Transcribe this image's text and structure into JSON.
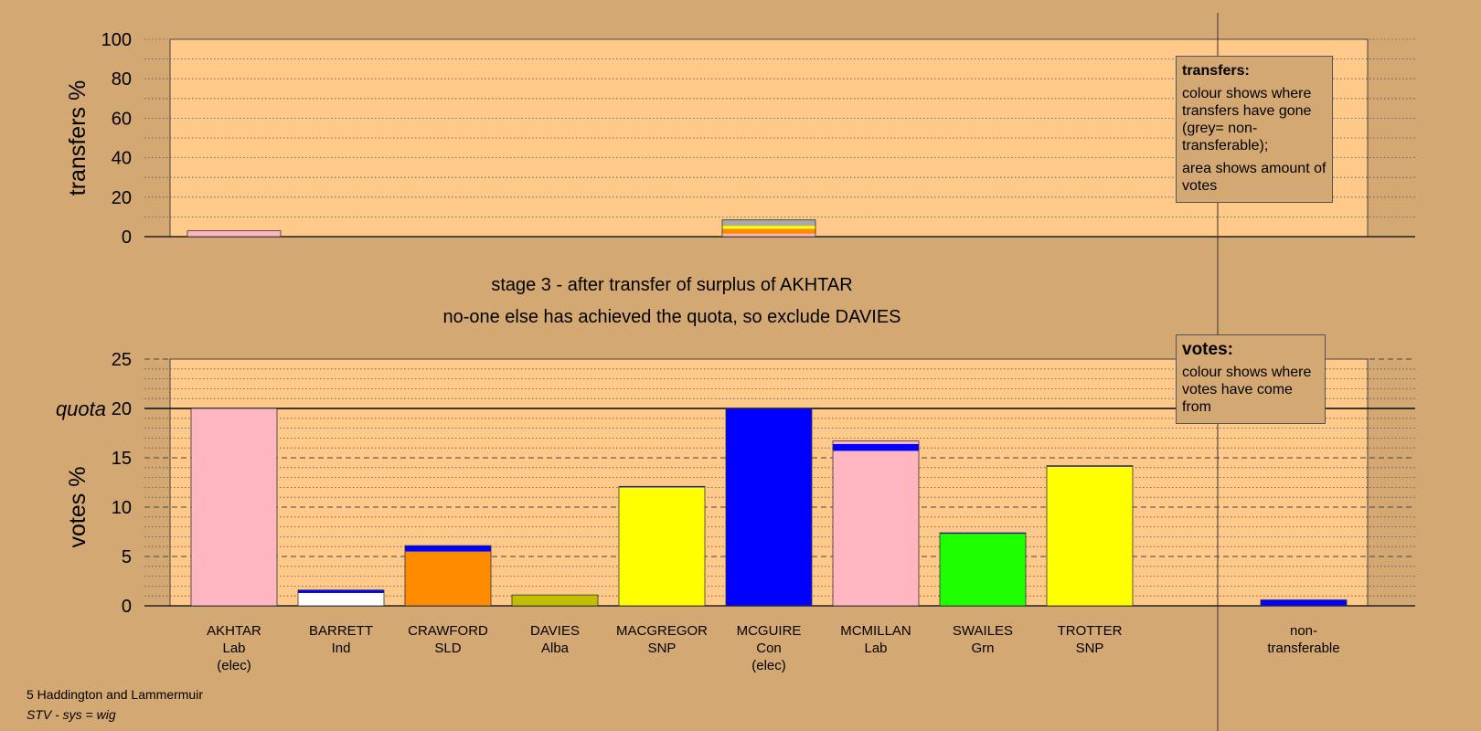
{
  "constituency": "5 Haddington and Lammermuir",
  "system": "STV - sys = wig",
  "stage": {
    "line1": "stage 3 - after transfer of surplus of AKHTAR",
    "line2": "no-one else has achieved the quota, so exclude DAVIES"
  },
  "legend_transfers": {
    "title": "transfers:",
    "line1": "colour shows where transfers have gone (grey= non-transferable);",
    "line2": "area shows amount of votes"
  },
  "legend_votes": {
    "title": "votes:",
    "line1": "colour shows where votes have come from"
  },
  "chart_data": [
    {
      "type": "bar",
      "ylabel": "transfers %",
      "ylim": [
        0,
        100
      ],
      "ticks": [
        0,
        20,
        40,
        60,
        80,
        100
      ],
      "grid": true,
      "bars": [
        {
          "index": 0,
          "segments": [
            {
              "color": "#ffb6c1",
              "value": 3
            }
          ]
        },
        {
          "index": 5,
          "segments": [
            {
              "color": "#ffb6c1",
              "value": 1.5
            },
            {
              "color": "#ff8c00",
              "value": 2.5
            },
            {
              "color": "#ffff00",
              "value": 1.5
            },
            {
              "color": "#a9a9a9",
              "value": 3
            }
          ]
        }
      ]
    },
    {
      "type": "bar",
      "ylabel": "votes %",
      "ylim": [
        0,
        25
      ],
      "ticks": [
        0,
        5,
        10,
        15,
        20,
        25
      ],
      "quota": 20,
      "quota_label": "quota",
      "grid": true,
      "candidates": [
        {
          "name": "AKHTAR",
          "party": "Lab",
          "note": "(elec)",
          "segments": [
            {
              "color": "#ffb6c1",
              "value": 20.0
            }
          ]
        },
        {
          "name": "BARRETT",
          "party": "Ind",
          "note": "",
          "segments": [
            {
              "color": "#ffffff",
              "value": 1.3
            },
            {
              "color": "#0000ff",
              "value": 0.3
            }
          ]
        },
        {
          "name": "CRAWFORD",
          "party": "SLD",
          "note": "",
          "segments": [
            {
              "color": "#ff8c00",
              "value": 5.5
            },
            {
              "color": "#0000ff",
              "value": 0.6
            }
          ]
        },
        {
          "name": "DAVIES",
          "party": "Alba",
          "note": "",
          "segments": [
            {
              "color": "#c0c000",
              "value": 1.1
            }
          ]
        },
        {
          "name": "MACGREGOR",
          "party": "SNP",
          "note": "",
          "segments": [
            {
              "color": "#ffff00",
              "value": 12.0
            },
            {
              "color": "#0000ff",
              "value": 0.1
            }
          ]
        },
        {
          "name": "MCGUIRE",
          "party": "Con",
          "note": "(elec)",
          "segments": [
            {
              "color": "#0000ff",
              "value": 20.0
            }
          ]
        },
        {
          "name": "MCMILLAN",
          "party": "Lab",
          "note": "",
          "segments": [
            {
              "color": "#ffb6c1",
              "value": 15.7
            },
            {
              "color": "#0000ff",
              "value": 0.7
            },
            {
              "color": "#ffb6c1",
              "value": 0.3
            }
          ]
        },
        {
          "name": "SWAILES",
          "party": "Grn",
          "note": "",
          "segments": [
            {
              "color": "#1eff00",
              "value": 7.3
            },
            {
              "color": "#0000ff",
              "value": 0.1
            }
          ]
        },
        {
          "name": "TROTTER",
          "party": "SNP",
          "note": "",
          "segments": [
            {
              "color": "#ffff00",
              "value": 14.1
            },
            {
              "color": "#0000ff",
              "value": 0.1
            }
          ]
        }
      ],
      "nontransferable": {
        "label1": "non-",
        "label2": "transferable",
        "segments": [
          {
            "color": "#0000ff",
            "value": 0.6
          }
        ]
      }
    }
  ]
}
